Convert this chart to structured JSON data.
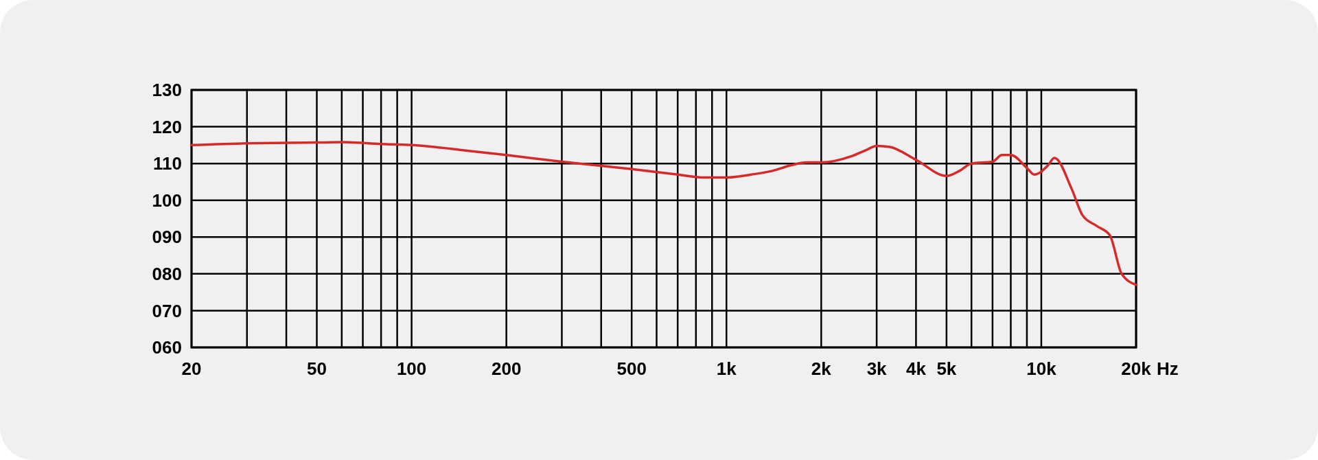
{
  "chart_data": {
    "type": "line",
    "xlabel": "Hz",
    "log": "x",
    "grid": true,
    "xlim": [
      20,
      20000
    ],
    "xticks": [
      20,
      {
        "value": 30,
        "label": null
      },
      {
        "value": 40,
        "label": null
      },
      50,
      {
        "value": 60,
        "label": null
      },
      {
        "value": 70,
        "label": null
      },
      {
        "value": 80,
        "label": null
      },
      {
        "value": 90,
        "label": null
      },
      100,
      200,
      {
        "value": 300,
        "label": null
      },
      {
        "value": 400,
        "label": null
      },
      500,
      {
        "value": 600,
        "label": null
      },
      {
        "value": 700,
        "label": null
      },
      {
        "value": 800,
        "label": null
      },
      {
        "value": 900,
        "label": null
      },
      {
        "value": 1000,
        "label": "1k"
      },
      {
        "value": 2000,
        "label": "2k"
      },
      {
        "value": 3000,
        "label": "3k"
      },
      {
        "value": 4000,
        "label": "4k"
      },
      {
        "value": 5000,
        "label": "5k"
      },
      {
        "value": 6000,
        "label": null
      },
      {
        "value": 7000,
        "label": null
      },
      {
        "value": 8000,
        "label": null
      },
      {
        "value": 9000,
        "label": null
      },
      {
        "value": 10000,
        "label": "10k"
      },
      {
        "value": 20000,
        "label": "20k"
      }
    ],
    "ylim": [
      60,
      130
    ],
    "yticks": [
      {
        "value": 60,
        "label": "060"
      },
      {
        "value": 70,
        "label": "070"
      },
      {
        "value": 80,
        "label": "080"
      },
      {
        "value": 90,
        "label": "090"
      },
      100,
      110,
      120,
      130
    ],
    "series": [
      {
        "color": "#d62a2a",
        "x": [
          20,
          30,
          50,
          60,
          80,
          100,
          150,
          200,
          300,
          500,
          700,
          850,
          1000,
          1200,
          1400,
          1600,
          1800,
          2000,
          2500,
          2800,
          3000,
          3300,
          4000,
          5000,
          5500,
          6000,
          7000,
          7500,
          8000,
          9000,
          9500,
          10500,
          11000,
          12500,
          13500,
          15000,
          16500,
          18000,
          20000
        ],
        "values": [
          115,
          115.5,
          115.7,
          115.8,
          115.3,
          115,
          113.5,
          112.3,
          110.5,
          108.5,
          107,
          106.2,
          106.2,
          107,
          108,
          109.5,
          110.3,
          110.3,
          112,
          113.8,
          114.8,
          114.5,
          111,
          106.6,
          108,
          110,
          110.5,
          112.3,
          112.3,
          108.8,
          107,
          109.5,
          111.5,
          103,
          96,
          93,
          90.5,
          80,
          77
        ]
      }
    ]
  }
}
